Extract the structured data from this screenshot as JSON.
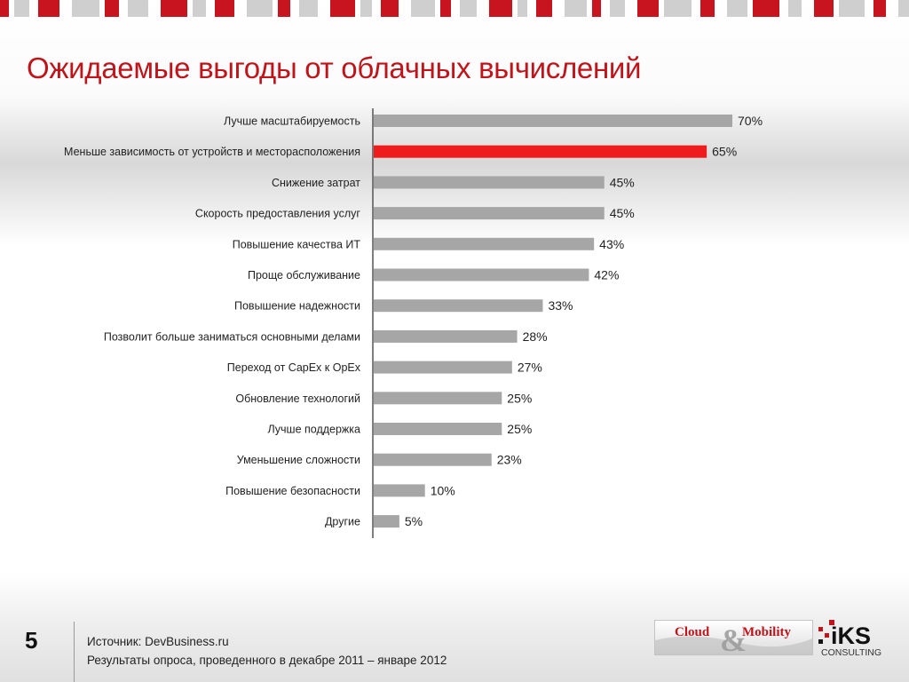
{
  "slide": {
    "title": "Ожидаемые выгоды от облачных вычислений",
    "page_number": "5",
    "source_line1": "Источник: DevBusiness.ru",
    "source_line2": "Результаты опроса, проведенного в декабре 2011 – январе 2012"
  },
  "logos": {
    "cloud_mobility": "Cloud & Mobility",
    "iks": "IKS",
    "iks_sub": "CONSULTING"
  },
  "colors": {
    "title": "#c0141b",
    "bar": "#a6a6a6",
    "bar_highlight": "#ee1c1c",
    "strip_red": "#c8141e",
    "strip_gray": "#cfcfcf"
  },
  "chart_data": {
    "type": "bar",
    "orientation": "horizontal",
    "categories": [
      "Лучше масштабируемость",
      "Меньше зависимость от устройств и месторасположения",
      "Снижение затрат",
      "Скорость предоставления услуг",
      "Повышение качества ИТ",
      "Проще обслуживание",
      "Повышение надежности",
      "Позволит больше заниматься основными делами",
      "Переход от CapEx к OpEx",
      "Обновление технологий",
      "Лучше поддержка",
      "Уменьшение сложности",
      "Повышение безопасности",
      "Другие"
    ],
    "values": [
      70,
      65,
      45,
      45,
      43,
      42,
      33,
      28,
      27,
      25,
      25,
      23,
      10,
      5
    ],
    "labels": [
      "70%",
      "65%",
      "45%",
      "45%",
      "43%",
      "42%",
      "33%",
      "28%",
      "27%",
      "25%",
      "25%",
      "23%",
      "10%",
      "5%"
    ],
    "highlight_index": 1,
    "xlim": [
      0,
      70
    ],
    "grid": false,
    "legend": "none"
  }
}
